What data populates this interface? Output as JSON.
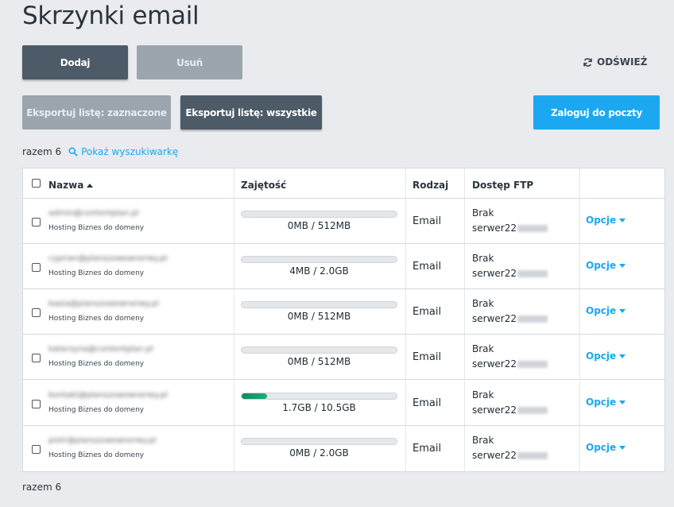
{
  "page": {
    "title": "Skrzynki email"
  },
  "toolbar": {
    "add_label": "Dodaj",
    "remove_label": "Usuń",
    "refresh_label": "ODŚWIEŻ",
    "export_selected_label": "Eksportuj listę: zaznaczone",
    "export_all_label": "Eksportuj listę: wszystkie",
    "login_mail_label": "Zaloguj do poczty"
  },
  "summary": {
    "count_text": "razem 6",
    "search_link": "Pokaż wyszukiwarkę",
    "bottom_count_text": "razem 6"
  },
  "table": {
    "columns": {
      "name": "Nazwa",
      "usage": "Zajętość",
      "type": "Rodzaj",
      "ftp": "Dostęp FTP"
    },
    "rows": [
      {
        "email": "admin@contentplan.pl",
        "plan": "Hosting Biznes do domeny",
        "usage": "0MB / 512MB",
        "usage_fraction": 0.0,
        "type": "Email",
        "ftp_status": "Brak",
        "ftp_server": "serwer22",
        "options": "Opcje"
      },
      {
        "email": "cyprian@planszowewnerwy.pl",
        "plan": "Hosting Biznes do domeny",
        "usage": "4MB / 2.0GB",
        "usage_fraction": 0.002,
        "type": "Email",
        "ftp_status": "Brak",
        "ftp_server": "serwer22",
        "options": "Opcje"
      },
      {
        "email": "basia@planszowewnerwy.pl",
        "plan": "Hosting Biznes do domeny",
        "usage": "0MB / 512MB",
        "usage_fraction": 0.0,
        "type": "Email",
        "ftp_status": "Brak",
        "ftp_server": "serwer22",
        "options": "Opcje"
      },
      {
        "email": "katarzyna@contentplan.pl",
        "plan": "Hosting Biznes do domeny",
        "usage": "0MB / 512MB",
        "usage_fraction": 0.0,
        "type": "Email",
        "ftp_status": "Brak",
        "ftp_server": "serwer22",
        "options": "Opcje"
      },
      {
        "email": "kontakt@planszowewnerwy.pl",
        "plan": "Hosting Biznes do domeny",
        "usage": "1.7GB / 10.5GB",
        "usage_fraction": 0.162,
        "type": "Email",
        "ftp_status": "Brak",
        "ftp_server": "serwer22",
        "options": "Opcje"
      },
      {
        "email": "piotr@planszowewnerwy.pl",
        "plan": "Hosting Biznes do domeny",
        "usage": "0MB / 2.0GB",
        "usage_fraction": 0.0,
        "type": "Email",
        "ftp_status": "Brak",
        "ftp_server": "serwer22",
        "options": "Opcje"
      }
    ]
  },
  "colors": {
    "accent": "#1ba8f0",
    "dark_button": "#4d5a67",
    "disabled_button": "#9aa5ae",
    "usage_fill": "#0d8a5a"
  },
  "icons": {
    "refresh": "refresh-icon",
    "search": "search-icon",
    "sort": "sort-asc-icon",
    "caret": "caret-down-icon"
  }
}
